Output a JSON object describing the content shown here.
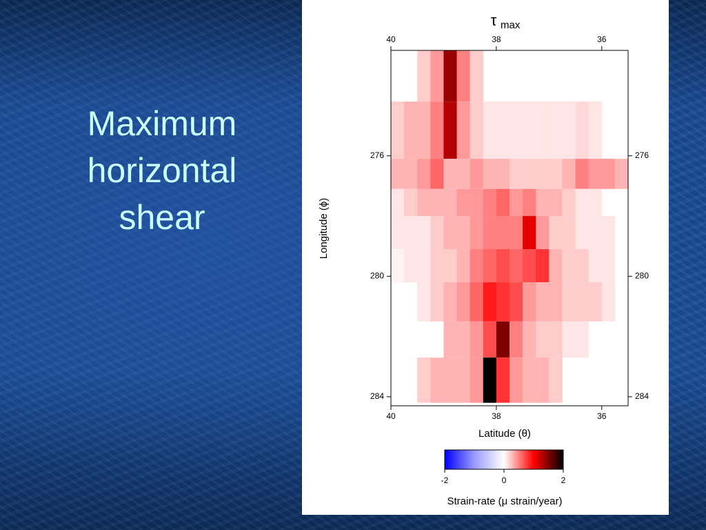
{
  "slide": {
    "title_lines": [
      "Maximum",
      "horizontal",
      "shear"
    ]
  },
  "chart_data": {
    "type": "heatmap",
    "title": "τ",
    "title_subscript": "max",
    "xlabel": "Latitude (θ)",
    "ylabel": "Longitude (ϕ)",
    "xlim": [
      40,
      35.5
    ],
    "ylim": [
      272.5,
      284.3
    ],
    "xticks": [
      40,
      38,
      36
    ],
    "yticks": [
      276,
      280,
      284
    ],
    "x_edges": [
      40,
      39.75,
      39.5,
      39.25,
      39,
      38.75,
      38.5,
      38.25,
      38,
      37.75,
      37.5,
      37.25,
      37,
      36.75,
      36.5,
      36.25,
      36,
      35.75,
      35.5
    ],
    "y_edges": [
      272.5,
      274.2,
      276.1,
      277.1,
      278.0,
      279.1,
      280.2,
      281.5,
      282.7,
      284.2
    ],
    "values": [
      [
        null,
        null,
        0.2,
        0.4,
        1.4,
        0.5,
        0.2,
        null,
        null,
        null,
        null,
        null,
        null,
        null,
        null,
        null,
        null,
        null
      ],
      [
        0.2,
        0.3,
        0.3,
        0.5,
        1.3,
        0.4,
        0.2,
        0.1,
        0.1,
        0.1,
        0.1,
        0.1,
        0.1,
        0.1,
        0.15,
        0.1,
        null,
        null
      ],
      [
        0.3,
        0.3,
        0.4,
        0.6,
        0.3,
        0.3,
        0.4,
        0.3,
        0.3,
        0.2,
        0.2,
        0.2,
        0.2,
        0.3,
        0.5,
        0.4,
        0.4,
        0.3
      ],
      [
        0.1,
        0.2,
        0.3,
        0.3,
        0.3,
        0.4,
        0.4,
        0.5,
        0.6,
        0.4,
        0.5,
        0.3,
        0.3,
        0.2,
        0.1,
        0.1,
        null,
        null
      ],
      [
        0.1,
        0.1,
        0.1,
        0.2,
        0.3,
        0.3,
        0.4,
        0.5,
        0.5,
        0.5,
        1.1,
        0.4,
        0.2,
        0.2,
        0.1,
        0.1,
        0.1,
        null
      ],
      [
        0.05,
        0.1,
        0.1,
        0.2,
        0.2,
        0.3,
        0.5,
        0.6,
        0.7,
        0.6,
        0.7,
        0.8,
        0.3,
        0.2,
        0.2,
        0.1,
        0.1,
        null
      ],
      [
        null,
        null,
        0.1,
        0.2,
        0.3,
        0.4,
        0.6,
        0.9,
        0.8,
        0.7,
        0.4,
        0.3,
        0.3,
        0.2,
        0.2,
        0.2,
        0.1,
        null
      ],
      [
        null,
        null,
        null,
        null,
        0.3,
        0.3,
        0.4,
        0.7,
        1.5,
        0.5,
        0.3,
        0.2,
        0.2,
        0.1,
        0.1,
        null,
        null,
        null
      ],
      [
        null,
        null,
        0.2,
        0.3,
        0.3,
        0.3,
        0.4,
        2.0,
        0.8,
        0.4,
        0.3,
        0.3,
        0.2,
        null,
        null,
        null,
        null,
        null
      ]
    ],
    "colorbar": {
      "lim": [
        -2,
        2
      ],
      "ticks": [
        -2,
        0,
        2
      ],
      "label": "Strain-rate (μ strain/year)",
      "colors": [
        "#0000ff",
        "#9a9aff",
        "#ffffff",
        "#ff0000",
        "#000000"
      ]
    }
  }
}
